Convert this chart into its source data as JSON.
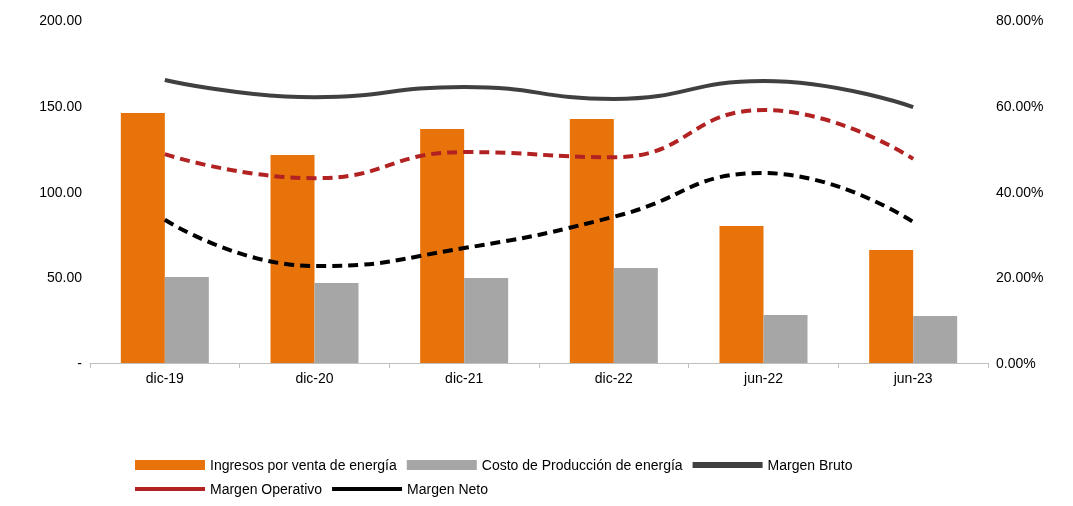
{
  "chart_data": {
    "type": "bar",
    "categories": [
      "dic-19",
      "dic-20",
      "dic-21",
      "dic-22",
      "jun-22",
      "jun-23"
    ],
    "series": [
      {
        "name": "Ingresos por venta de energía",
        "color": "#e8730a",
        "values": [
          145.8,
          121.3,
          136.4,
          142.3,
          79.9,
          65.9
        ]
      },
      {
        "name": "Costo de Producción de energía",
        "color": "#a6a6a6",
        "values": [
          50.1,
          46.6,
          49.6,
          55.4,
          28,
          27.4
        ]
      },
      {
        "name": "Margen Bruto",
        "type": "line",
        "axis": "y2",
        "color": "#404040",
        "line_style": "solid",
        "values": [
          66.0,
          62.0,
          64.4,
          61.6,
          65.8,
          59.7
        ]
      },
      {
        "name": "Margen Operativo",
        "type": "line",
        "axis": "y2",
        "color": "#b22222",
        "line_style": "dashed",
        "values": [
          48.7,
          43.1,
          49.2,
          48.0,
          59.0,
          47.6
        ]
      },
      {
        "name": "Margen Neto",
        "type": "line",
        "axis": "y2",
        "color": "#000000",
        "line_style": "dashed",
        "values": [
          33.4,
          22.6,
          26.8,
          34.1,
          44.3,
          32.9
        ]
      }
    ],
    "ylim": [
      0,
      200
    ],
    "yticks": [
      {
        "value": 0,
        "label": "-"
      },
      {
        "value": 50,
        "label": "50.00"
      },
      {
        "value": 100,
        "label": "100.00"
      },
      {
        "value": 150,
        "label": "150.00"
      },
      {
        "value": 200,
        "label": "200.00"
      }
    ],
    "y2lim": [
      0,
      80
    ],
    "y2ticks": [
      {
        "value": 0,
        "label": "0.00%"
      },
      {
        "value": 20,
        "label": "20.00%"
      },
      {
        "value": 40,
        "label": "40.00%"
      },
      {
        "value": 60,
        "label": "60.00%"
      },
      {
        "value": 80,
        "label": "80.00%"
      }
    ],
    "grid": false,
    "legend": "bottom",
    "marker": "none"
  }
}
